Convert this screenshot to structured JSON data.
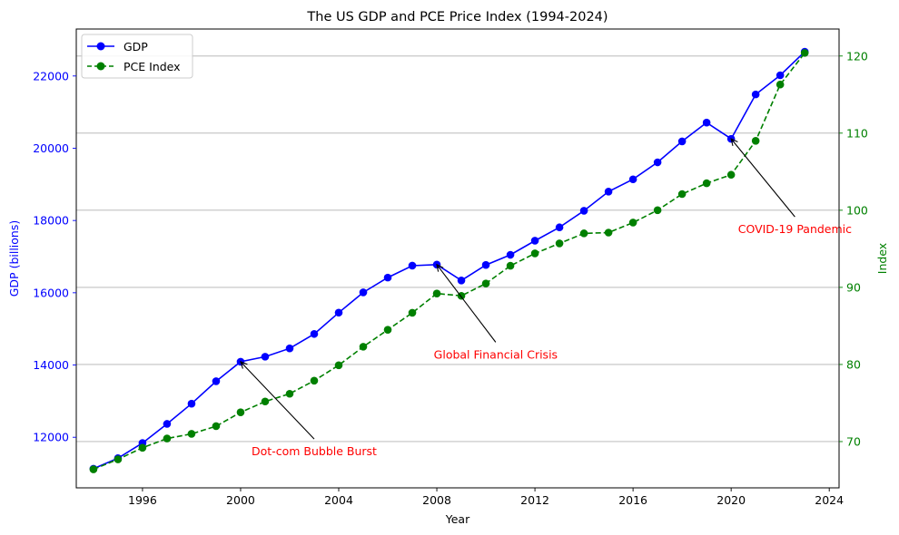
{
  "chart_data": {
    "type": "line",
    "title": "The US GDP and PCE Price Index (1994-2024)",
    "xlabel": "Year",
    "ylabel_left": "GDP (billions)",
    "ylabel_right": "Index",
    "xlim": [
      1993.3,
      2024.4
    ],
    "ylim_left": [
      10600,
      23300
    ],
    "ylim_right": [
      64,
      123.5
    ],
    "xticks": [
      1996,
      2000,
      2004,
      2008,
      2012,
      2016,
      2020,
      2024
    ],
    "yticks_left": [
      12000,
      14000,
      16000,
      18000,
      20000,
      22000
    ],
    "yticks_right": [
      70,
      80,
      90,
      100,
      110,
      120
    ],
    "grid": "right-axis horizontal",
    "legend_position": "upper-left",
    "x": [
      1994,
      1995,
      1996,
      1997,
      1998,
      1999,
      2000,
      2001,
      2002,
      2003,
      2004,
      2005,
      2006,
      2007,
      2008,
      2009,
      2010,
      2011,
      2012,
      2013,
      2014,
      2015,
      2016,
      2017,
      2018,
      2019,
      2020,
      2021,
      2022,
      2023
    ],
    "series": [
      {
        "name": "GDP",
        "axis": "left",
        "color": "#0000ff",
        "style": "solid",
        "values": [
          11130,
          11420,
          11840,
          12370,
          12930,
          13550,
          14090,
          14230,
          14460,
          14860,
          15450,
          16010,
          16420,
          16750,
          16780,
          16340,
          16770,
          17050,
          17440,
          17810,
          18270,
          18800,
          19140,
          19610,
          20190,
          20710,
          20260,
          21490,
          22020,
          22670
        ]
      },
      {
        "name": "PCE Index",
        "axis": "right",
        "color": "#008000",
        "style": "dashed",
        "values": [
          66.4,
          67.7,
          69.2,
          70.4,
          71.0,
          72.0,
          73.8,
          75.2,
          76.2,
          77.9,
          79.9,
          82.3,
          84.5,
          86.7,
          89.2,
          88.9,
          90.5,
          92.8,
          94.4,
          95.7,
          97.0,
          97.1,
          98.4,
          100.0,
          102.1,
          103.5,
          104.6,
          109.0,
          116.3,
          120.4
        ]
      }
    ],
    "annotations": [
      {
        "text": "Dot-com Bubble Burst",
        "x": 2000,
        "y": 14090,
        "text_x": 2003,
        "text_y": 11600,
        "color": "#ff0000"
      },
      {
        "text": "Global Financial Crisis",
        "x": 2008,
        "y": 16780,
        "text_x": 2010.4,
        "text_y": 14280,
        "color": "#ff0000"
      },
      {
        "text": "COVID-19 Pandemic",
        "x": 2020,
        "y": 20260,
        "text_x": 2022.6,
        "text_y": 17750,
        "color": "#ff0000"
      }
    ]
  }
}
